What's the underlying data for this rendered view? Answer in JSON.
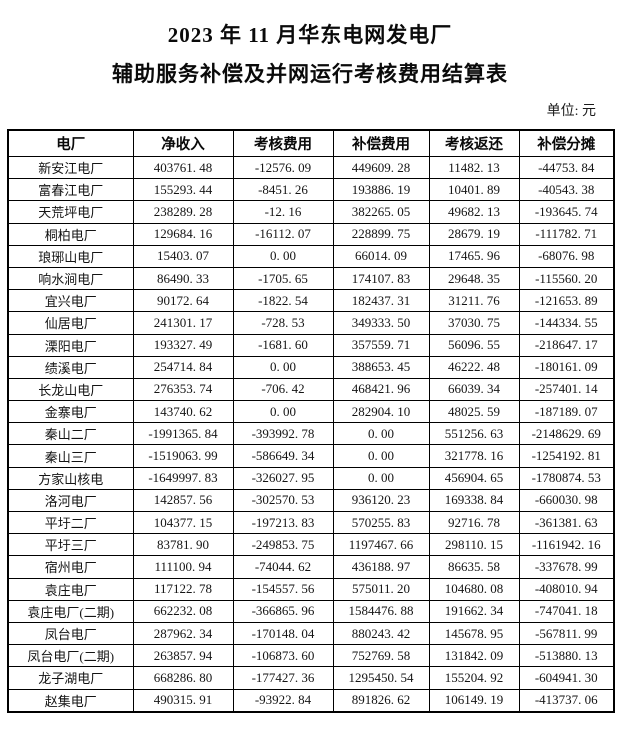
{
  "document": {
    "title_line1": "2023 年 11 月华东电网发电厂",
    "title_line2": "辅助服务补偿及并网运行考核费用结算表",
    "unit_label": "单位: 元"
  },
  "table": {
    "columns": [
      "电厂",
      "净收入",
      "考核费用",
      "补偿费用",
      "考核返还",
      "补偿分摊"
    ],
    "rows": [
      {
        "plant": "新安江电厂",
        "values": [
          "403761. 48",
          "-12576. 09",
          "449609. 28",
          "11482. 13",
          "-44753. 84"
        ]
      },
      {
        "plant": "富春江电厂",
        "values": [
          "155293. 44",
          "-8451. 26",
          "193886. 19",
          "10401. 89",
          "-40543. 38"
        ]
      },
      {
        "plant": "天荒坪电厂",
        "values": [
          "238289. 28",
          "-12. 16",
          "382265. 05",
          "49682. 13",
          "-193645. 74"
        ]
      },
      {
        "plant": "桐柏电厂",
        "values": [
          "129684. 16",
          "-16112. 07",
          "228899. 75",
          "28679. 19",
          "-111782. 71"
        ]
      },
      {
        "plant": "琅琊山电厂",
        "values": [
          "15403. 07",
          "0. 00",
          "66014. 09",
          "17465. 96",
          "-68076. 98"
        ]
      },
      {
        "plant": "响水涧电厂",
        "values": [
          "86490. 33",
          "-1705. 65",
          "174107. 83",
          "29648. 35",
          "-115560. 20"
        ]
      },
      {
        "plant": "宜兴电厂",
        "values": [
          "90172. 64",
          "-1822. 54",
          "182437. 31",
          "31211. 76",
          "-121653. 89"
        ]
      },
      {
        "plant": "仙居电厂",
        "values": [
          "241301. 17",
          "-728. 53",
          "349333. 50",
          "37030. 75",
          "-144334. 55"
        ]
      },
      {
        "plant": "溧阳电厂",
        "values": [
          "193327. 49",
          "-1681. 60",
          "357559. 71",
          "56096. 55",
          "-218647. 17"
        ]
      },
      {
        "plant": "绩溪电厂",
        "values": [
          "254714. 84",
          "0. 00",
          "388653. 45",
          "46222. 48",
          "-180161. 09"
        ]
      },
      {
        "plant": "长龙山电厂",
        "values": [
          "276353. 74",
          "-706. 42",
          "468421. 96",
          "66039. 34",
          "-257401. 14"
        ]
      },
      {
        "plant": "金寨电厂",
        "values": [
          "143740. 62",
          "0. 00",
          "282904. 10",
          "48025. 59",
          "-187189. 07"
        ]
      },
      {
        "plant": "秦山二厂",
        "values": [
          "-1991365. 84",
          "-393992. 78",
          "0. 00",
          "551256. 63",
          "-2148629. 69"
        ]
      },
      {
        "plant": "秦山三厂",
        "values": [
          "-1519063. 99",
          "-586649. 34",
          "0. 00",
          "321778. 16",
          "-1254192. 81"
        ]
      },
      {
        "plant": "方家山核电",
        "values": [
          "-1649997. 83",
          "-326027. 95",
          "0. 00",
          "456904. 65",
          "-1780874. 53"
        ]
      },
      {
        "plant": "洛河电厂",
        "values": [
          "142857. 56",
          "-302570. 53",
          "936120. 23",
          "169338. 84",
          "-660030. 98"
        ]
      },
      {
        "plant": "平圩二厂",
        "values": [
          "104377. 15",
          "-197213. 83",
          "570255. 83",
          "92716. 78",
          "-361381. 63"
        ]
      },
      {
        "plant": "平圩三厂",
        "values": [
          "83781. 90",
          "-249853. 75",
          "1197467. 66",
          "298110. 15",
          "-1161942. 16"
        ]
      },
      {
        "plant": "宿州电厂",
        "values": [
          "111100. 94",
          "-74044. 62",
          "436188. 97",
          "86635. 58",
          "-337678. 99"
        ]
      },
      {
        "plant": "袁庄电厂",
        "values": [
          "117122. 78",
          "-154557. 56",
          "575011. 20",
          "104680. 08",
          "-408010. 94"
        ]
      },
      {
        "plant": "袁庄电厂(二期)",
        "values": [
          "662232. 08",
          "-366865. 96",
          "1584476. 88",
          "191662. 34",
          "-747041. 18"
        ]
      },
      {
        "plant": "凤台电厂",
        "values": [
          "287962. 34",
          "-170148. 04",
          "880243. 42",
          "145678. 95",
          "-567811. 99"
        ]
      },
      {
        "plant": "凤台电厂(二期)",
        "values": [
          "263857. 94",
          "-106873. 60",
          "752769. 58",
          "131842. 09",
          "-513880. 13"
        ]
      },
      {
        "plant": "龙子湖电厂",
        "values": [
          "668286. 80",
          "-177427. 36",
          "1295450. 54",
          "155204. 92",
          "-604941. 30"
        ]
      },
      {
        "plant": "赵集电厂",
        "values": [
          "490315. 91",
          "-93922. 84",
          "891826. 62",
          "106149. 19",
          "-413737. 06"
        ]
      }
    ]
  }
}
